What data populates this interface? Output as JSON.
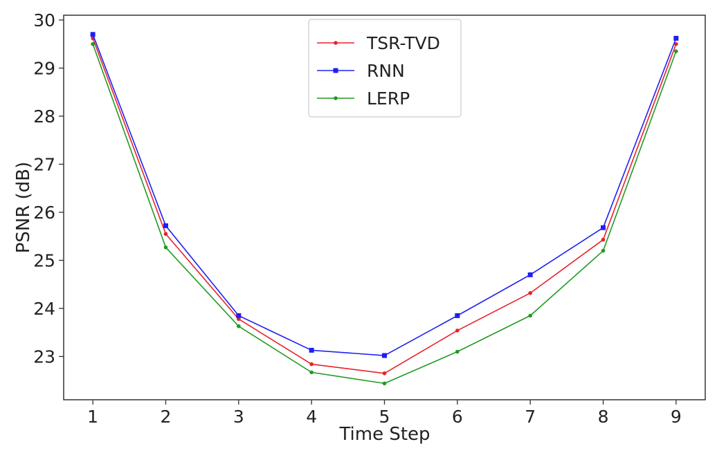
{
  "chart_data": {
    "type": "line",
    "title": "",
    "xlabel": "Time Step",
    "ylabel": "PSNR (dB)",
    "x": [
      1,
      2,
      3,
      4,
      5,
      6,
      7,
      8,
      9
    ],
    "xlim": [
      0.6,
      9.4
    ],
    "ylim": [
      22.1,
      30.1
    ],
    "xticks": [
      1,
      2,
      3,
      4,
      5,
      6,
      7,
      8,
      9
    ],
    "yticks": [
      23,
      24,
      25,
      26,
      27,
      28,
      29,
      30
    ],
    "grid": false,
    "legend_position": "top-center",
    "series": [
      {
        "name": "TSR-TVD",
        "color": "#e8212a",
        "marker": "dot",
        "values": [
          29.62,
          25.55,
          23.78,
          22.84,
          22.65,
          23.54,
          24.32,
          25.43,
          29.5
        ]
      },
      {
        "name": "RNN",
        "color": "#1f1ff2",
        "marker": "square",
        "values": [
          29.7,
          25.72,
          23.85,
          23.13,
          23.02,
          23.85,
          24.7,
          25.68,
          29.62
        ]
      },
      {
        "name": "LERP",
        "color": "#219a21",
        "marker": "dot",
        "values": [
          29.5,
          25.27,
          23.63,
          22.67,
          22.44,
          23.1,
          23.85,
          25.2,
          29.35
        ]
      }
    ]
  }
}
